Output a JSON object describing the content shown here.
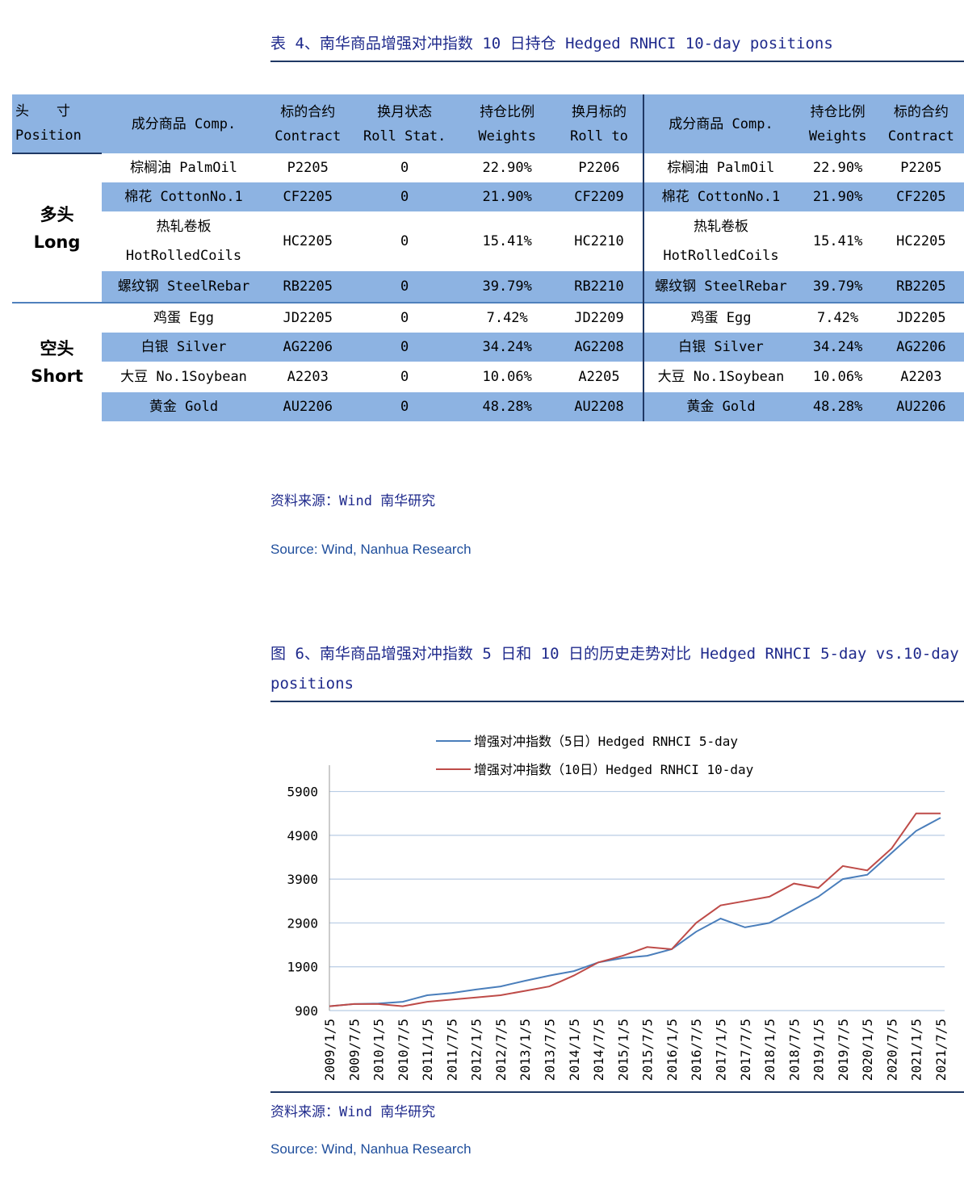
{
  "table": {
    "title": "表 4、南华商品增强对冲指数 10 日持仓 Hedged RNHCI 10-day positions",
    "headers": [
      [
        "头　　寸",
        "Position"
      ],
      [
        "成分商品 Comp."
      ],
      [
        "标的合约",
        "Contract"
      ],
      [
        "换月状态",
        "Roll Stat."
      ],
      [
        "持仓比例",
        "Weights"
      ],
      [
        "换月标的",
        "Roll to"
      ],
      [
        "成分商品 Comp."
      ],
      [
        "持仓比例",
        "Weights"
      ],
      [
        "标的合约",
        "Contract"
      ]
    ],
    "groups": [
      {
        "label": [
          "多头",
          "Long"
        ],
        "rows": [
          [
            "棕榈油 PalmOil",
            "P2205",
            "0",
            "22.90%",
            "P2206",
            "棕榈油 PalmOil",
            "22.90%",
            "P2205"
          ],
          [
            "棉花 CottonNo.1",
            "CF2205",
            "0",
            "21.90%",
            "CF2209",
            "棉花 CottonNo.1",
            "21.90%",
            "CF2205"
          ],
          [
            "热轧卷板 HotRolledCoils",
            "HC2205",
            "0",
            "15.41%",
            "HC2210",
            "热轧卷板 HotRolledCoils",
            "15.41%",
            "HC2205"
          ],
          [
            "螺纹钢 SteelRebar",
            "RB2205",
            "0",
            "39.79%",
            "RB2210",
            "螺纹钢 SteelRebar",
            "39.79%",
            "RB2205"
          ]
        ]
      },
      {
        "label": [
          "空头",
          "Short"
        ],
        "rows": [
          [
            "鸡蛋 Egg",
            "JD2205",
            "0",
            "7.42%",
            "JD2209",
            "鸡蛋 Egg",
            "7.42%",
            "JD2205"
          ],
          [
            "白银 Silver",
            "AG2206",
            "0",
            "34.24%",
            "AG2208",
            "白银 Silver",
            "34.24%",
            "AG2206"
          ],
          [
            "大豆 No.1Soybean",
            "A2203",
            "0",
            "10.06%",
            "A2205",
            "大豆 No.1Soybean",
            "10.06%",
            "A2203"
          ],
          [
            "黄金 Gold",
            "AU2206",
            "0",
            "48.28%",
            "AU2208",
            "黄金 Gold",
            "48.28%",
            "AU2206"
          ]
        ]
      }
    ],
    "source": "资料来源：Wind 南华研究",
    "source_en": "Source: Wind, Nanhua Research"
  },
  "chart_data": {
    "type": "line",
    "title": "图 6、南华商品增强对冲指数 5 日和 10 日的历史走势对比 Hedged RNHCI 5-day vs.10-day positions",
    "categories": [
      "2009/1/5",
      "2009/7/5",
      "2010/1/5",
      "2010/7/5",
      "2011/1/5",
      "2011/7/5",
      "2012/1/5",
      "2012/7/5",
      "2013/1/5",
      "2013/7/5",
      "2014/1/5",
      "2014/7/5",
      "2015/1/5",
      "2015/7/5",
      "2016/1/5",
      "2016/7/5",
      "2017/1/5",
      "2017/7/5",
      "2018/1/5",
      "2018/7/5",
      "2019/1/5",
      "2019/7/5",
      "2020/1/5",
      "2020/7/5",
      "2021/1/5",
      "2021/7/5"
    ],
    "series": [
      {
        "name": "增强对冲指数（5日）Hedged RNHCI 5-day",
        "color": "#4a7ebb",
        "values": [
          1000,
          1050,
          1060,
          1100,
          1250,
          1300,
          1380,
          1450,
          1580,
          1700,
          1800,
          2000,
          2100,
          2150,
          2300,
          2700,
          3000,
          2800,
          2900,
          3200,
          3500,
          3900,
          4000,
          4500,
          5000,
          5300
        ]
      },
      {
        "name": "增强对冲指数（10日）Hedged RNHCI 10-day",
        "color": "#be4b48",
        "values": [
          1000,
          1050,
          1050,
          1000,
          1100,
          1150,
          1200,
          1250,
          1350,
          1450,
          1700,
          2000,
          2150,
          2350,
          2300,
          2900,
          3300,
          3400,
          3500,
          3800,
          3700,
          4200,
          4100,
          4600,
          5400,
          5400
        ]
      }
    ],
    "ylim": [
      900,
      6500
    ],
    "yticks": [
      900,
      1900,
      2900,
      3900,
      4900,
      5900
    ],
    "grid": true,
    "source": "资料来源：Wind 南华研究",
    "source_en": "Source: Wind, Nanhua Research"
  }
}
